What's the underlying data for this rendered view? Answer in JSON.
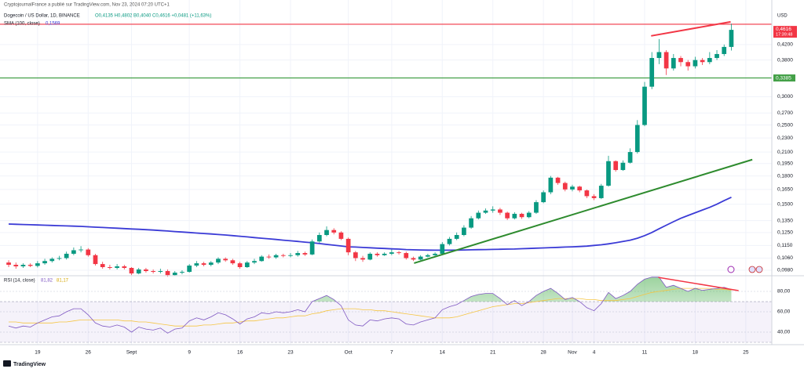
{
  "chart_data": {
    "type": "candlestick",
    "header_top": "CryptojournalFrance a publié sur TradingView.com, Nov 23, 2024 07:20 UTC+1",
    "title": "Dogecoin / US Dollar, 1D, BINANCE",
    "ohlc_text": "O0,4135 H0,4802 B0,4040 C0,4616 +0,0481 (+11,63%)",
    "currency": "USD",
    "last_label": "0,4616",
    "countdown": "17:39:48",
    "brand": "TradingView",
    "log_scale": true,
    "grid": true,
    "up_color": "#089981",
    "down_color": "#f23645",
    "xlim": [
      -1.2,
      105.6
    ],
    "xticks": [
      {
        "value": 4,
        "label": "19"
      },
      {
        "value": 11,
        "label": "26"
      },
      {
        "value": 17,
        "label": "Sept"
      },
      {
        "value": 25,
        "label": "9"
      },
      {
        "value": 32,
        "label": "16"
      },
      {
        "value": 39,
        "label": "23"
      },
      {
        "value": 47,
        "label": "Oct"
      },
      {
        "value": 53,
        "label": "7"
      },
      {
        "value": 60,
        "label": "14"
      },
      {
        "value": 67,
        "label": "21"
      },
      {
        "value": 74,
        "label": "28"
      },
      {
        "value": 78,
        "label": "Nov"
      },
      {
        "value": 81,
        "label": "4"
      },
      {
        "value": 88,
        "label": "11"
      },
      {
        "value": 95,
        "label": "18"
      },
      {
        "value": 102,
        "label": "25"
      }
    ],
    "ylim": [
      0.0946,
      0.532
    ],
    "yticks": [
      {
        "value": 0.42,
        "label": "0,4200"
      },
      {
        "value": 0.38,
        "label": "0,3800"
      },
      {
        "value": 0.3,
        "label": "0,3000"
      },
      {
        "value": 0.27,
        "label": "0,2700"
      },
      {
        "value": 0.25,
        "label": "0,2500"
      },
      {
        "value": 0.23,
        "label": "0,2300"
      },
      {
        "value": 0.21,
        "label": "0,2100"
      },
      {
        "value": 0.195,
        "label": "0,1950"
      },
      {
        "value": 0.18,
        "label": "0,1800"
      },
      {
        "value": 0.165,
        "label": "0,1650"
      },
      {
        "value": 0.15,
        "label": "0,1500"
      },
      {
        "value": 0.135,
        "label": "0,1350"
      },
      {
        "value": 0.125,
        "label": "0,1250"
      },
      {
        "value": 0.115,
        "label": "0,1150"
      },
      {
        "value": 0.106,
        "label": "0,1060"
      },
      {
        "value": 0.098,
        "label": "0,0980"
      }
    ],
    "ohlc": [
      [
        0.103,
        0.1045,
        0.1,
        0.1015
      ],
      [
        0.1015,
        0.103,
        0.099,
        0.1005
      ],
      [
        0.1005,
        0.1025,
        0.0995,
        0.1015
      ],
      [
        0.1015,
        0.1025,
        0.1,
        0.1008
      ],
      [
        0.1008,
        0.104,
        0.0998,
        0.1025
      ],
      [
        0.1025,
        0.1055,
        0.1015,
        0.104
      ],
      [
        0.104,
        0.1065,
        0.103,
        0.1055
      ],
      [
        0.1055,
        0.1075,
        0.1045,
        0.106
      ],
      [
        0.106,
        0.1105,
        0.105,
        0.109
      ],
      [
        0.109,
        0.1135,
        0.108,
        0.1115
      ],
      [
        0.1115,
        0.1145,
        0.11,
        0.112
      ],
      [
        0.112,
        0.113,
        0.107,
        0.108
      ],
      [
        0.108,
        0.109,
        0.101,
        0.102
      ],
      [
        0.102,
        0.1035,
        0.099,
        0.1
      ],
      [
        0.1,
        0.1015,
        0.0985,
        0.0995
      ],
      [
        0.0995,
        0.102,
        0.0985,
        0.1005
      ],
      [
        0.1005,
        0.1015,
        0.0985,
        0.0995
      ],
      [
        0.0995,
        0.1,
        0.095,
        0.096
      ],
      [
        0.096,
        0.0995,
        0.0955,
        0.0985
      ],
      [
        0.0985,
        0.0995,
        0.0965,
        0.0975
      ],
      [
        0.0975,
        0.0985,
        0.096,
        0.097
      ],
      [
        0.097,
        0.099,
        0.096,
        0.0975
      ],
      [
        0.0975,
        0.0985,
        0.094,
        0.095
      ],
      [
        0.095,
        0.0975,
        0.0945,
        0.0965
      ],
      [
        0.0965,
        0.098,
        0.0955,
        0.097
      ],
      [
        0.097,
        0.102,
        0.0965,
        0.101
      ],
      [
        0.101,
        0.104,
        0.1,
        0.1025
      ],
      [
        0.1025,
        0.1035,
        0.1005,
        0.1015
      ],
      [
        0.1015,
        0.104,
        0.1005,
        0.103
      ],
      [
        0.103,
        0.1065,
        0.102,
        0.1055
      ],
      [
        0.1055,
        0.1065,
        0.1035,
        0.1045
      ],
      [
        0.1045,
        0.1055,
        0.1015,
        0.1025
      ],
      [
        0.1025,
        0.1035,
        0.099,
        0.1
      ],
      [
        0.1,
        0.104,
        0.0995,
        0.103
      ],
      [
        0.103,
        0.1055,
        0.102,
        0.104
      ],
      [
        0.104,
        0.108,
        0.1035,
        0.107
      ],
      [
        0.107,
        0.1085,
        0.1055,
        0.1065
      ],
      [
        0.1065,
        0.109,
        0.1055,
        0.108
      ],
      [
        0.108,
        0.109,
        0.1065,
        0.1075
      ],
      [
        0.1075,
        0.1095,
        0.1065,
        0.108
      ],
      [
        0.108,
        0.111,
        0.107,
        0.1095
      ],
      [
        0.1095,
        0.1105,
        0.1075,
        0.1085
      ],
      [
        0.1085,
        0.1195,
        0.108,
        0.118
      ],
      [
        0.118,
        0.125,
        0.117,
        0.123
      ],
      [
        0.123,
        0.13,
        0.122,
        0.127
      ],
      [
        0.127,
        0.1285,
        0.1235,
        0.125
      ],
      [
        0.125,
        0.126,
        0.119,
        0.12
      ],
      [
        0.12,
        0.121,
        0.108,
        0.11
      ],
      [
        0.11,
        0.111,
        0.104,
        0.106
      ],
      [
        0.106,
        0.1075,
        0.1035,
        0.105
      ],
      [
        0.105,
        0.11,
        0.1045,
        0.109
      ],
      [
        0.109,
        0.11,
        0.107,
        0.108
      ],
      [
        0.108,
        0.11,
        0.1075,
        0.109
      ],
      [
        0.109,
        0.112,
        0.108,
        0.11
      ],
      [
        0.11,
        0.111,
        0.1085,
        0.1095
      ],
      [
        0.1095,
        0.1105,
        0.105,
        0.106
      ],
      [
        0.106,
        0.107,
        0.104,
        0.105
      ],
      [
        0.105,
        0.108,
        0.1045,
        0.107
      ],
      [
        0.107,
        0.109,
        0.1065,
        0.108
      ],
      [
        0.108,
        0.11,
        0.1075,
        0.109
      ],
      [
        0.109,
        0.1175,
        0.1085,
        0.116
      ],
      [
        0.116,
        0.1215,
        0.115,
        0.12
      ],
      [
        0.12,
        0.125,
        0.119,
        0.123
      ],
      [
        0.123,
        0.131,
        0.122,
        0.129
      ],
      [
        0.129,
        0.139,
        0.128,
        0.137
      ],
      [
        0.137,
        0.144,
        0.136,
        0.142
      ],
      [
        0.142,
        0.146,
        0.141,
        0.144
      ],
      [
        0.144,
        0.148,
        0.142,
        0.145
      ],
      [
        0.145,
        0.1465,
        0.14,
        0.142
      ],
      [
        0.142,
        0.143,
        0.1355,
        0.137
      ],
      [
        0.137,
        0.1425,
        0.136,
        0.141
      ],
      [
        0.141,
        0.142,
        0.1365,
        0.138
      ],
      [
        0.138,
        0.1435,
        0.137,
        0.142
      ],
      [
        0.142,
        0.154,
        0.141,
        0.152
      ],
      [
        0.152,
        0.164,
        0.151,
        0.162
      ],
      [
        0.162,
        0.18,
        0.16,
        0.178
      ],
      [
        0.178,
        0.179,
        0.17,
        0.172
      ],
      [
        0.172,
        0.1735,
        0.163,
        0.165
      ],
      [
        0.165,
        0.17,
        0.163,
        0.168
      ],
      [
        0.168,
        0.169,
        0.162,
        0.164
      ],
      [
        0.164,
        0.165,
        0.156,
        0.158
      ],
      [
        0.158,
        0.16,
        0.154,
        0.156
      ],
      [
        0.156,
        0.171,
        0.155,
        0.169
      ],
      [
        0.169,
        0.205,
        0.168,
        0.198
      ],
      [
        0.198,
        0.199,
        0.185,
        0.187
      ],
      [
        0.187,
        0.199,
        0.186,
        0.196
      ],
      [
        0.196,
        0.215,
        0.195,
        0.21
      ],
      [
        0.21,
        0.258,
        0.208,
        0.25
      ],
      [
        0.25,
        0.33,
        0.248,
        0.32
      ],
      [
        0.32,
        0.4,
        0.315,
        0.385
      ],
      [
        0.385,
        0.435,
        0.37,
        0.4
      ],
      [
        0.4,
        0.405,
        0.345,
        0.36
      ],
      [
        0.36,
        0.395,
        0.355,
        0.385
      ],
      [
        0.385,
        0.39,
        0.365,
        0.375
      ],
      [
        0.375,
        0.38,
        0.355,
        0.365
      ],
      [
        0.365,
        0.388,
        0.36,
        0.38
      ],
      [
        0.38,
        0.385,
        0.368,
        0.375
      ],
      [
        0.375,
        0.4,
        0.37,
        0.385
      ],
      [
        0.385,
        0.405,
        0.38,
        0.395
      ],
      [
        0.395,
        0.42,
        0.39,
        0.4135
      ],
      [
        0.4135,
        0.4802,
        0.404,
        0.4616
      ]
    ],
    "sma": {
      "name": "SMA (100, close)",
      "value_label": "0,1569",
      "color": "#3b3bd6",
      "values": [
        0.132,
        0.1318,
        0.1316,
        0.1314,
        0.1312,
        0.131,
        0.1308,
        0.1306,
        0.1304,
        0.1302,
        0.13,
        0.1297,
        0.1294,
        0.1291,
        0.1288,
        0.1285,
        0.1282,
        0.1279,
        0.1276,
        0.1273,
        0.127,
        0.1266,
        0.1262,
        0.1258,
        0.1254,
        0.125,
        0.1246,
        0.1242,
        0.1238,
        0.1234,
        0.123,
        0.1225,
        0.122,
        0.1215,
        0.121,
        0.1205,
        0.12,
        0.1195,
        0.119,
        0.1185,
        0.118,
        0.1175,
        0.117,
        0.1164,
        0.1158,
        0.1152,
        0.1146,
        0.114,
        0.1138,
        0.1135,
        0.1133,
        0.113,
        0.1128,
        0.1125,
        0.1123,
        0.112,
        0.1118,
        0.1117,
        0.1116,
        0.1115,
        0.1115,
        0.1115,
        0.1116,
        0.1117,
        0.1118,
        0.1119,
        0.112,
        0.1121,
        0.1122,
        0.1123,
        0.1124,
        0.1126,
        0.1128,
        0.113,
        0.1132,
        0.1134,
        0.1136,
        0.1138,
        0.114,
        0.1142,
        0.1145,
        0.115,
        0.1155,
        0.1162,
        0.117,
        0.118,
        0.119,
        0.1205,
        0.1225,
        0.125,
        0.128,
        0.131,
        0.134,
        0.137,
        0.1395,
        0.142,
        0.1445,
        0.147,
        0.15,
        0.1535,
        0.1569
      ]
    },
    "hlines": [
      {
        "value": 0.4786,
        "color": "#f23645"
      },
      {
        "value": 0.3385,
        "label": "0,3385",
        "color": "#43a047"
      }
    ],
    "trendlines": [
      {
        "color": "#2e8b2e",
        "points": [
          [
            56.1,
            0.1026
          ],
          [
            102.9,
            0.2
          ]
        ]
      },
      {
        "color": "#f23645",
        "points": [
          [
            88.9,
            0.444
          ],
          [
            99.9,
            0.486
          ]
        ]
      }
    ],
    "rsi": {
      "name": "RSI (14, close)",
      "value_label": "81,82",
      "ma_label": "81,17",
      "color": "#7e57c2",
      "ma_color": "#f5c542",
      "ylim": [
        27.7,
        95.4
      ],
      "yticks": [
        {
          "value": 80,
          "label": "80,00"
        },
        {
          "value": 60,
          "label": "60,00"
        },
        {
          "value": 40,
          "label": "40,00"
        }
      ],
      "band": [
        30,
        70
      ],
      "values": [
        46,
        44,
        46,
        45,
        49,
        52,
        55,
        56,
        60,
        63,
        63,
        57,
        49,
        46,
        45,
        47,
        45,
        40,
        45,
        43,
        42,
        44,
        39,
        43,
        44,
        51,
        54,
        52,
        55,
        59,
        57,
        53,
        48,
        53,
        55,
        59,
        58,
        60,
        59,
        60,
        62,
        60,
        70,
        73,
        76,
        72,
        66,
        52,
        47,
        46,
        52,
        51,
        53,
        54,
        53,
        48,
        47,
        50,
        52,
        54,
        62,
        65,
        67,
        71,
        75,
        77,
        78,
        78,
        73,
        67,
        71,
        66,
        70,
        76,
        80,
        83,
        78,
        72,
        74,
        70,
        64,
        61,
        68,
        79,
        73,
        76,
        80,
        87,
        92,
        94,
        94,
        84,
        86,
        83,
        80,
        83,
        81,
        82,
        83,
        84,
        81.82
      ],
      "ma_values": [
        50,
        50,
        49,
        49,
        49,
        49,
        49,
        50,
        50,
        51,
        52,
        52,
        52,
        52,
        52,
        52,
        51,
        51,
        50,
        50,
        49,
        48,
        47,
        46,
        46,
        46,
        46,
        47,
        47,
        48,
        49,
        49,
        50,
        51,
        51,
        52,
        53,
        54,
        54,
        55,
        56,
        56,
        58,
        59,
        61,
        62,
        63,
        63,
        63,
        62,
        62,
        61,
        61,
        60,
        59,
        58,
        57,
        56,
        55,
        54,
        54,
        54,
        55,
        57,
        59,
        61,
        63,
        65,
        66,
        67,
        68,
        68,
        69,
        70,
        71,
        72,
        73,
        73,
        73,
        73,
        72,
        72,
        71,
        71,
        71,
        72,
        73,
        75,
        77,
        79,
        80,
        81,
        82,
        83,
        83,
        83,
        83,
        83,
        82,
        82,
        81.17
      ],
      "trendline": {
        "color": "#f23645",
        "points": [
          [
            89.9,
            93.8
          ],
          [
            101,
            80.8
          ]
        ]
      }
    }
  }
}
